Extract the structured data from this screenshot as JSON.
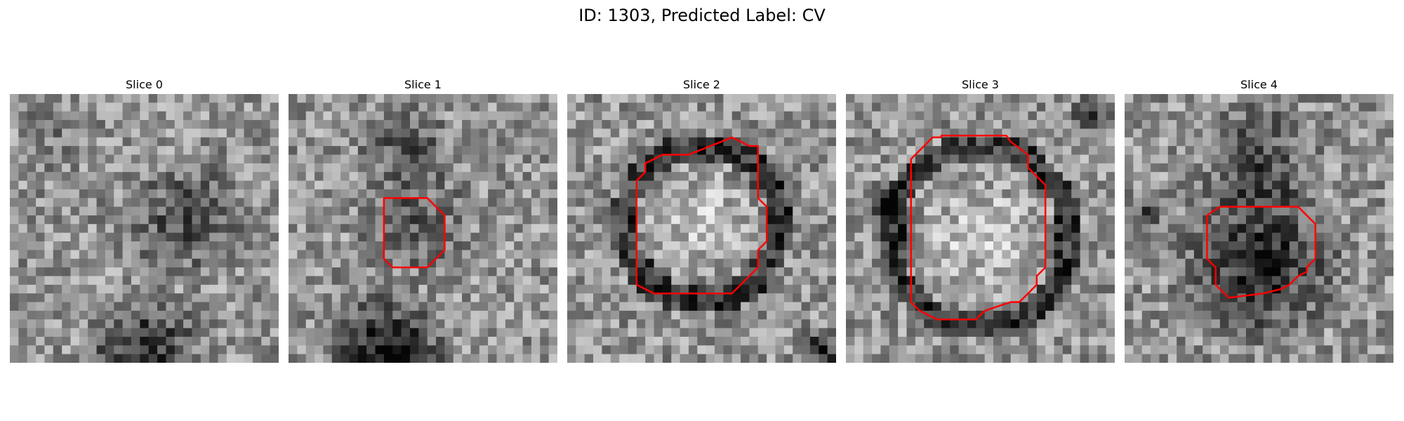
{
  "figure": {
    "title": "ID: 1303, Predicted Label: CV"
  },
  "slices": [
    {
      "title": "Slice 0",
      "seed": 11,
      "pattern": "noise"
    },
    {
      "title": "Slice 1",
      "seed": 23,
      "pattern": "small-ring"
    },
    {
      "title": "Slice 2",
      "seed": 37,
      "pattern": "bright-ring"
    },
    {
      "title": "Slice 3",
      "seed": 53,
      "pattern": "bright-ring-large"
    },
    {
      "title": "Slice 4",
      "seed": 71,
      "pattern": "dark-blob"
    }
  ],
  "colors": {
    "contour": "#ff0000"
  }
}
